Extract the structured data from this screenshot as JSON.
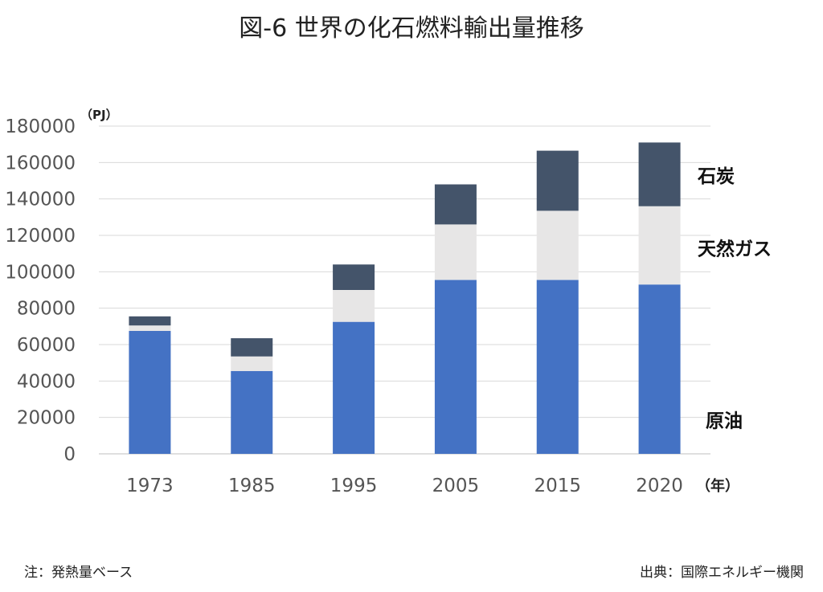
{
  "chart_data": {
    "type": "bar",
    "stacked": true,
    "title": "図-6 世界の化石燃料輸出量推移",
    "ylabel": "（PJ）",
    "xlabel": "（年）",
    "categories": [
      "1973",
      "1985",
      "1995",
      "2005",
      "2015",
      "2020"
    ],
    "yticks": [
      "0",
      "20000",
      "40000",
      "60000",
      "80000",
      "100000",
      "120000",
      "140000",
      "160000",
      "180000"
    ],
    "ylim": [
      0,
      180000
    ],
    "grid": true,
    "legend_placement": "right, next to last bar",
    "series": [
      {
        "name": "原油",
        "color": "#4472c4",
        "values": [
          67500,
          45500,
          72500,
          95500,
          95500,
          93000
        ]
      },
      {
        "name": "天然ガス",
        "color": "#e7e6e6",
        "values": [
          3000,
          8000,
          17500,
          30500,
          38000,
          43000
        ]
      },
      {
        "name": "石炭",
        "color": "#44546a",
        "values": [
          5000,
          10000,
          14000,
          22000,
          33000,
          35000
        ]
      }
    ]
  },
  "notes": {
    "left": "注：発熱量ベース",
    "right": "出典：国際エネルギー機関"
  }
}
